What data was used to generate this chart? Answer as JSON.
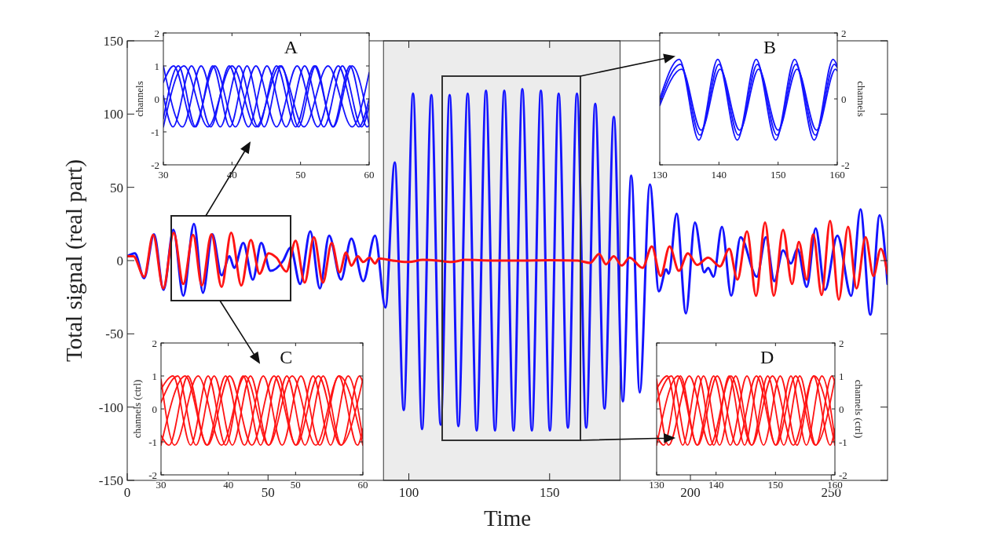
{
  "chart_data": [
    {
      "type": "line",
      "xlabel": "Time",
      "ylabel": "Total signal (real part)",
      "xlim": [
        0,
        270
      ],
      "ylim": [
        -150,
        150
      ],
      "xticks": [
        0,
        50,
        100,
        150,
        200,
        250
      ],
      "yticks": [
        -150,
        -100,
        -50,
        0,
        50,
        100,
        150
      ],
      "bands": [
        {
          "axis": "x",
          "from": 91,
          "to": 175,
          "color": "#ececec"
        }
      ],
      "series": [
        {
          "color": "#1414ff",
          "x": [
            0,
            2.7,
            6,
            9.5,
            12.9,
            16.4,
            19.9,
            23.7,
            26.9,
            30.2,
            33.5,
            36.3,
            38,
            41.2,
            44.6,
            47.6,
            50.9,
            55.4,
            58,
            61.4,
            65,
            68.4,
            71.7,
            75.9,
            79.6,
            83.8,
            88,
            91.7,
            95,
            98.2,
            101.5,
            104.7,
            108,
            111.3,
            114.5,
            117.6,
            120.9,
            124.1,
            127.4,
            130.6,
            133.9,
            137.2,
            140.3,
            143.7,
            146.9,
            150.1,
            153.2,
            156.5,
            159.7,
            163,
            166.2,
            169.5,
            172.8,
            176,
            179,
            182,
            185.6,
            188.8,
            191.4,
            192.3,
            195.1,
            198.4,
            201.6,
            204.9,
            206.3,
            208.2,
            211.2,
            214.5,
            217.8,
            223.6,
            226.8,
            229.8,
            232.9,
            235.7,
            238,
            241.3,
            244.5,
            247.8,
            252.2,
            257.1,
            260.4,
            263.9,
            267.2,
            270
          ],
          "values": [
            3,
            5,
            -12,
            18,
            -20,
            21,
            -24,
            25,
            -22,
            18,
            -10,
            3,
            -5,
            12,
            -13,
            12,
            -7,
            0,
            9,
            -16,
            20,
            -19,
            17,
            -13,
            15,
            -14,
            17,
            -32,
            67,
            -102,
            114,
            -115,
            113,
            -112,
            113,
            -113,
            114,
            -116,
            116,
            -116,
            116,
            -116,
            117,
            -116,
            116,
            -116,
            114,
            -114,
            114,
            -114,
            107,
            -101,
            98,
            -96,
            58,
            -90,
            52,
            -21,
            -6,
            -9,
            32,
            -36,
            26,
            -8,
            -5,
            -11,
            23,
            -24,
            16,
            -11,
            16,
            -14,
            7,
            -2,
            8,
            -18,
            22,
            -20,
            17,
            -24,
            35,
            -37,
            31,
            -16
          ]
        },
        {
          "color": "#ff1414",
          "x": [
            0,
            2.2,
            6,
            9.2,
            12.8,
            16.5,
            19.9,
            23.4,
            26.5,
            29.9,
            33.5,
            36.9,
            40.5,
            43.9,
            47,
            50.2,
            53,
            56.5,
            59.8,
            63,
            66.3,
            69.5,
            72.6,
            75.4,
            77.7,
            79.6,
            81.9,
            83.8,
            86.1,
            88,
            89.4,
            94.3,
            100,
            105,
            110,
            115,
            120,
            130,
            140,
            150,
            160,
            164.4,
            167.6,
            170,
            172.8,
            175.6,
            178.4,
            183,
            186.3,
            189.4,
            192.6,
            195.9,
            199.1,
            202.4,
            206.3,
            210.5,
            213.8,
            216.7,
            220.1,
            223.3,
            226.5,
            229.6,
            232.9,
            236.1,
            238.5,
            241.3,
            243.6,
            246.6,
            249.6,
            252.7,
            256,
            259,
            262.2,
            265,
            267.6,
            270
          ],
          "values": [
            3,
            3,
            -11,
            17.5,
            -19,
            19,
            -16,
            17.5,
            -17,
            18,
            -18,
            19,
            -17,
            14,
            -9,
            5,
            2,
            -7.5,
            13.5,
            -15,
            16,
            -15,
            12,
            -8,
            5.5,
            -3.5,
            3,
            -1,
            2,
            -2,
            1.5,
            0,
            -1,
            0.5,
            0,
            -1,
            0.5,
            0,
            0,
            0.3,
            0,
            -1.6,
            4.6,
            -2.5,
            3,
            -3.4,
            2,
            -5,
            9.6,
            -10.5,
            9.6,
            -7,
            5,
            -3,
            2,
            -4,
            8,
            -13,
            20,
            -24,
            26,
            -24,
            21,
            -16,
            12.7,
            -13,
            18,
            -23.5,
            27,
            -26.6,
            23,
            -19,
            16,
            -10.5,
            8,
            -9
          ]
        }
      ]
    },
    {
      "type": "line",
      "ylabel": "channels",
      "xlim": [
        30,
        60
      ],
      "ylim": [
        -2,
        2
      ],
      "xticks": [
        30,
        40,
        50,
        60
      ],
      "yticks": [
        -2,
        -1,
        0,
        1,
        2
      ],
      "annotations": [
        "A"
      ],
      "series": [
        {
          "color": "#1414ff",
          "x": [
            30,
            32.8,
            35.5,
            38.3,
            41,
            43.8,
            46.5,
            49.3,
            52,
            54.8,
            57.5,
            60
          ],
          "values": [
            1,
            -0.85,
            1,
            -0.85,
            1,
            -0.85,
            1,
            -0.85,
            1,
            -0.85,
            1,
            -0.8
          ]
        },
        {
          "color": "#1414ff",
          "x": [
            30,
            31.4,
            34.1,
            36.9,
            39.6,
            42.4,
            45.1,
            47.9,
            50.6,
            53.4,
            56.1,
            58.9,
            60
          ],
          "values": [
            0.1,
            -0.85,
            1,
            -0.85,
            1,
            -0.85,
            1,
            -0.85,
            1,
            -0.85,
            1,
            -0.85,
            -0.2
          ]
        },
        {
          "color": "#1414ff",
          "x": [
            30,
            31.5,
            34.5,
            37.5,
            40.5,
            43.5,
            46.5,
            49.5,
            52.5,
            55.5,
            58.5,
            60
          ],
          "values": [
            0.5,
            1,
            -0.85,
            1,
            -0.85,
            1,
            -0.85,
            1,
            -0.85,
            1,
            -0.85,
            0
          ]
        },
        {
          "color": "#1414ff",
          "x": [
            30,
            32.2,
            34.7,
            37.2,
            39.7,
            42.2,
            44.7,
            47.2,
            49.7,
            52.2,
            54.7,
            57.2,
            59.7,
            60
          ],
          "values": [
            -0.6,
            1,
            -0.85,
            1,
            -0.85,
            1,
            -0.85,
            1,
            -0.85,
            1,
            -0.85,
            1,
            -0.85,
            -0.8
          ]
        },
        {
          "color": "#1414ff",
          "x": [
            30,
            33,
            36.5,
            40,
            43.5,
            47,
            50.5,
            54,
            57.5,
            60
          ],
          "values": [
            -0.85,
            1,
            -0.85,
            1,
            -0.85,
            1,
            -0.85,
            1,
            -0.85,
            0.8
          ]
        }
      ]
    },
    {
      "type": "line",
      "ylabel": "channels",
      "xlim": [
        130,
        160
      ],
      "ylim": [
        -2,
        2
      ],
      "xticks": [
        130,
        140,
        150,
        160
      ],
      "yticks": [
        -2,
        0,
        2
      ],
      "annotations": [
        "B"
      ],
      "series": [
        {
          "color": "#1414ff",
          "x": [
            130,
            133.5,
            136.8,
            140,
            143.3,
            146.5,
            149.8,
            153,
            156.3,
            159.5,
            160
          ],
          "values": [
            -0.1,
            1.05,
            -1.1,
            1.05,
            -1.1,
            1.05,
            -1.1,
            1.05,
            -1.1,
            1.05,
            0.95
          ]
        },
        {
          "color": "#1414ff",
          "x": [
            130,
            133.3,
            136.6,
            139.8,
            143.1,
            146.3,
            149.6,
            152.8,
            156.1,
            159.3,
            160
          ],
          "values": [
            0,
            1.2,
            -1.25,
            1.2,
            -1.25,
            1.2,
            -1.25,
            1.2,
            -1.25,
            1.2,
            1
          ]
        },
        {
          "color": "#1414ff",
          "x": [
            130,
            133.7,
            137,
            140.2,
            143.5,
            146.7,
            150,
            153.2,
            156.5,
            159.7,
            160
          ],
          "values": [
            -0.2,
            0.9,
            -0.95,
            0.9,
            -0.95,
            0.9,
            -0.95,
            0.9,
            -0.95,
            0.9,
            0.85
          ]
        }
      ]
    },
    {
      "type": "line",
      "ylabel": "channels (ctrl)",
      "xlim": [
        30,
        60
      ],
      "ylim": [
        -2,
        2
      ],
      "xticks": [
        30,
        40,
        50,
        60
      ],
      "yticks": [
        -2,
        -1,
        0,
        1,
        2
      ],
      "annotations": [
        "C"
      ],
      "series": [
        {
          "color": "#ff1414",
          "x": [
            30,
            32.5,
            35.2,
            37.9,
            40.6,
            43.3,
            46,
            48.7,
            51.4,
            54.1,
            56.8,
            59.5,
            60
          ],
          "values": [
            0.2,
            1,
            -1.1,
            1,
            -1.1,
            1,
            -1.1,
            1,
            -1.1,
            1,
            -1.1,
            1,
            0.8
          ]
        },
        {
          "color": "#ff1414",
          "x": [
            30,
            31.2,
            34,
            36.8,
            39.6,
            42.4,
            45.2,
            48,
            50.8,
            53.6,
            56.4,
            59.2,
            60
          ],
          "values": [
            -0.8,
            -1.1,
            1,
            -1.1,
            1,
            -1.1,
            1,
            -1.1,
            1,
            -1.1,
            1,
            -1.1,
            -0.6
          ]
        },
        {
          "color": "#ff1414",
          "x": [
            30,
            33.6,
            36.9,
            40.2,
            43.5,
            46.8,
            50.1,
            53.4,
            56.7,
            60
          ],
          "values": [
            -1.1,
            1,
            -1.1,
            1,
            -1.1,
            1,
            -1.1,
            1,
            -1.1,
            0.9
          ]
        },
        {
          "color": "#ff1414",
          "x": [
            30,
            31.8,
            34.4,
            37,
            39.6,
            42.2,
            44.8,
            47.4,
            50,
            52.6,
            55.2,
            57.8,
            60
          ],
          "values": [
            0.6,
            1,
            -1.1,
            1,
            -1.1,
            1,
            -1.1,
            1,
            -1.1,
            1,
            -1.1,
            1,
            -0.9
          ]
        },
        {
          "color": "#ff1414",
          "x": [
            30,
            32,
            35.5,
            39,
            42.5,
            46,
            49.5,
            53,
            56.5,
            60
          ],
          "values": [
            0.9,
            -1.1,
            1,
            -1.1,
            1,
            -1.1,
            1,
            -1.1,
            1,
            -1.1
          ]
        }
      ]
    },
    {
      "type": "line",
      "ylabel": "channels (ctrl)",
      "xlim": [
        130,
        160
      ],
      "ylim": [
        -2,
        2
      ],
      "xticks": [
        130,
        140,
        150,
        160
      ],
      "yticks": [
        -2,
        -1,
        0,
        1,
        2
      ],
      "annotations": [
        "D"
      ],
      "series": [
        {
          "color": "#ff1414",
          "x": [
            130,
            132.5,
            135.2,
            137.9,
            140.6,
            143.3,
            146,
            148.7,
            151.4,
            154.1,
            156.8,
            159.5,
            160
          ],
          "values": [
            0.2,
            1,
            -1.1,
            1,
            -1.1,
            1,
            -1.1,
            1,
            -1.1,
            1,
            -1.1,
            1,
            0.8
          ]
        },
        {
          "color": "#ff1414",
          "x": [
            130,
            131.2,
            134,
            136.8,
            139.6,
            142.4,
            145.2,
            148,
            150.8,
            153.6,
            156.4,
            159.2,
            160
          ],
          "values": [
            -0.8,
            -1.1,
            1,
            -1.1,
            1,
            -1.1,
            1,
            -1.1,
            1,
            -1.1,
            1,
            -1.1,
            -0.6
          ]
        },
        {
          "color": "#ff1414",
          "x": [
            130,
            133.6,
            136.9,
            140.2,
            143.5,
            146.8,
            150.1,
            153.4,
            156.7,
            160
          ],
          "values": [
            -1.1,
            1,
            -1.1,
            1,
            -1.1,
            1,
            -1.1,
            1,
            -1.1,
            0.9
          ]
        },
        {
          "color": "#ff1414",
          "x": [
            130,
            131.8,
            134.4,
            137,
            139.6,
            142.2,
            144.8,
            147.4,
            150,
            152.6,
            155.2,
            157.8,
            160
          ],
          "values": [
            0.6,
            1,
            -1.1,
            1,
            -1.1,
            1,
            -1.1,
            1,
            -1.1,
            1,
            -1.1,
            1,
            -0.9
          ]
        },
        {
          "color": "#ff1414",
          "x": [
            130,
            132,
            135.5,
            139,
            142.5,
            146,
            149.5,
            153,
            156.5,
            160
          ],
          "values": [
            0.9,
            -1.1,
            1,
            -1.1,
            1,
            -1.1,
            1,
            -1.1,
            1,
            -1.1
          ]
        }
      ]
    }
  ]
}
